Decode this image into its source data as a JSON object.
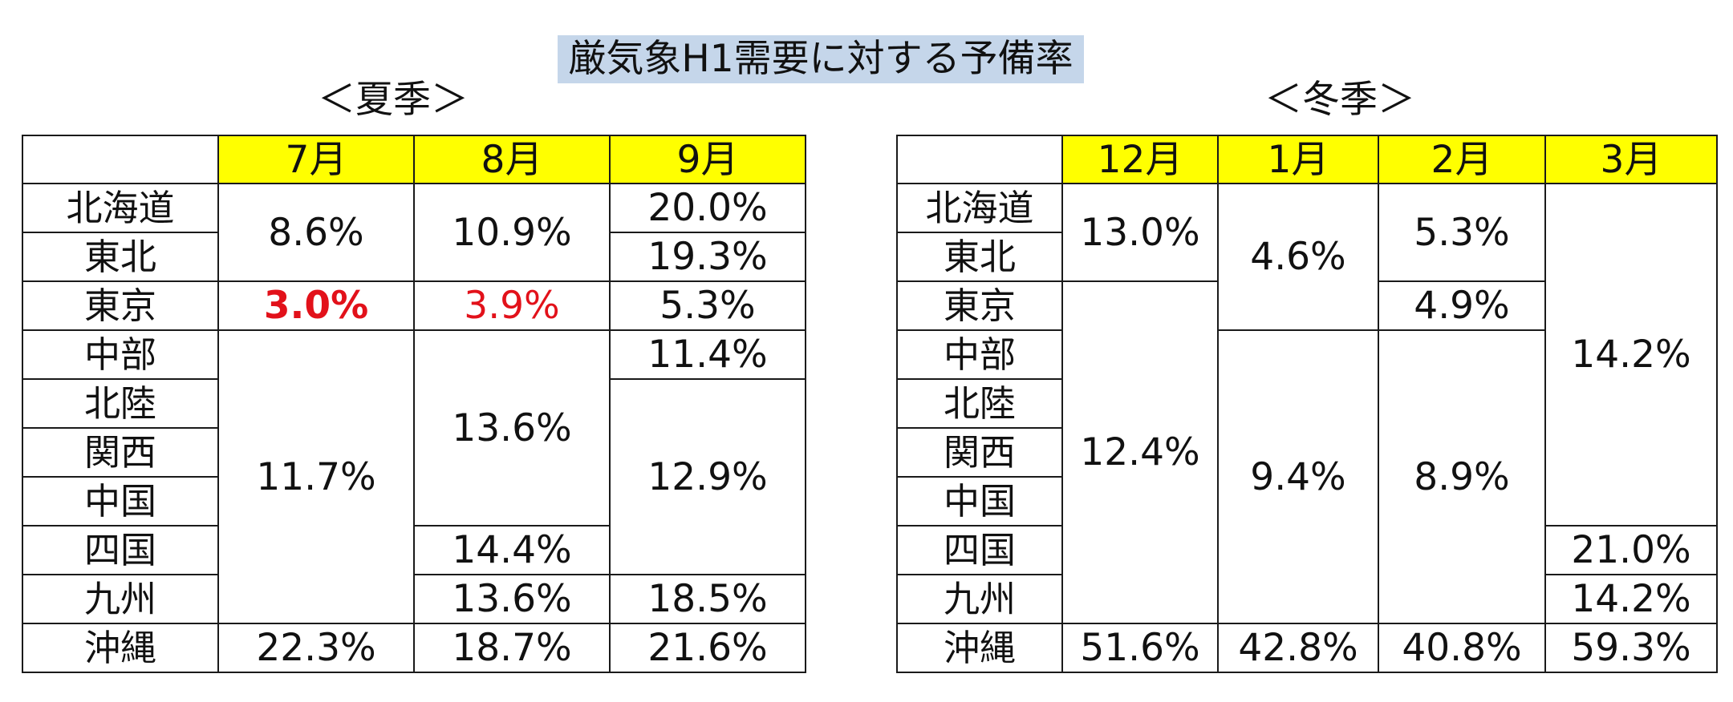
{
  "title": "厳気象H1需要に対する予備率",
  "summer": {
    "label": "＜夏季＞",
    "months": [
      "7月",
      "8月",
      "9月"
    ],
    "regions": [
      "北海道",
      "東北",
      "東京",
      "中部",
      "北陸",
      "関西",
      "中国",
      "四国",
      "九州",
      "沖縄"
    ],
    "jul": {
      "hokkaido_tohoku": "8.6%",
      "tokyo": "3.0%",
      "chubu_kyushu": "11.7%",
      "okinawa": "22.3%"
    },
    "aug": {
      "hokkaido_tohoku": "10.9%",
      "tokyo": "3.9%",
      "chubu_chugoku": "13.6%",
      "shikoku": "14.4%",
      "kyushu": "13.6%",
      "okinawa": "18.7%"
    },
    "sep": {
      "hokkaido": "20.0%",
      "tohoku": "19.3%",
      "tokyo": "5.3%",
      "chubu": "11.4%",
      "hokuriku_shikoku": "12.9%",
      "kyushu": "18.5%",
      "okinawa": "21.6%"
    }
  },
  "winter": {
    "label": "＜冬季＞",
    "months": [
      "12月",
      "1月",
      "2月",
      "3月"
    ],
    "regions": [
      "北海道",
      "東北",
      "東京",
      "中部",
      "北陸",
      "関西",
      "中国",
      "四国",
      "九州",
      "沖縄"
    ],
    "dec": {
      "hokkaido_tohoku": "13.0%",
      "tokyo_kyushu": "12.4%",
      "okinawa": "51.6%"
    },
    "jan": {
      "hokkaido_tokyo": "4.6%",
      "chubu_kyushu": "9.4%",
      "okinawa": "42.8%"
    },
    "feb": {
      "hokkaido_tohoku": "5.3%",
      "tokyo": "4.9%",
      "chubu_kyushu": "8.9%",
      "okinawa": "40.8%"
    },
    "mar": {
      "hokkaido_chugoku": "14.2%",
      "shikoku": "21.0%",
      "kyushu": "14.2%",
      "okinawa": "59.3%"
    }
  }
}
